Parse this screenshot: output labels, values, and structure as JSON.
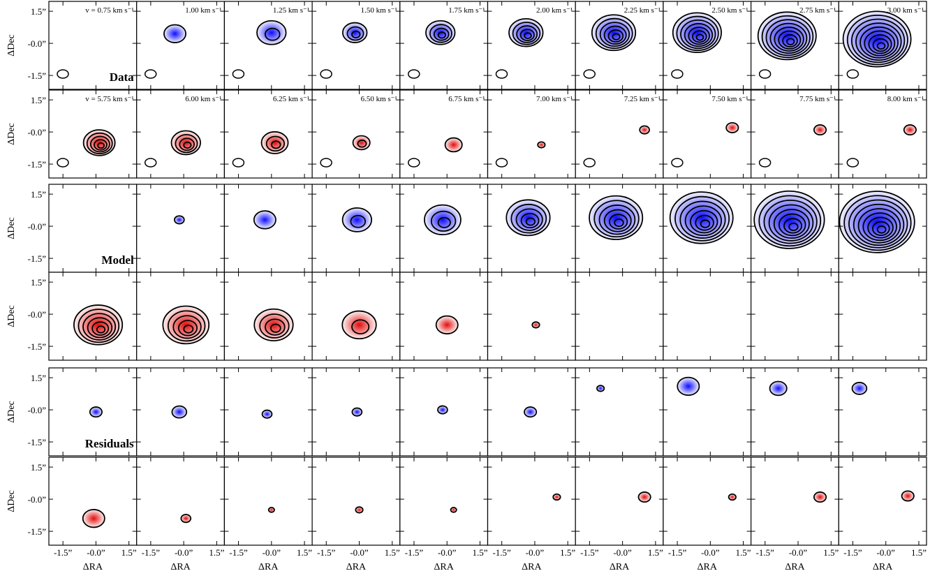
{
  "chart_data": {
    "type": "channel-map",
    "x_label": "ΔRA",
    "y_label": "ΔDec",
    "xlim": [
      -2.14,
      1.85
    ],
    "ylim": [
      -2.15,
      1.96
    ],
    "xticks": [
      {
        "value": -1.5,
        "label": "-1.5”"
      },
      {
        "value": 0,
        "label": "-0.0”"
      },
      {
        "value": 1.5,
        "label": "1.5”"
      }
    ],
    "yticks": [
      {
        "value": 1.5,
        "label": "1.5”"
      },
      {
        "value": 0,
        "label": "-0.0”"
      },
      {
        "value": -1.5,
        "label": "-1.5”"
      }
    ],
    "blue_color": "#0000ff",
    "red_color": "#e00000",
    "blue_velocities": [
      "v = 0.75 km s⁻¹",
      "1.00 km s⁻¹",
      "1.25 km s⁻¹",
      "1.50 km s⁻¹",
      "1.75 km s⁻¹",
      "2.00 km s⁻¹",
      "2.25 km s⁻¹",
      "2.50 km s⁻¹",
      "2.75 km s⁻¹",
      "3.00 km s⁻¹"
    ],
    "red_velocities": [
      "v = 5.75 km s⁻¹",
      "6.00 km s⁻¹",
      "6.25 km s⁻¹",
      "6.50 km s⁻¹",
      "6.75 km s⁻¹",
      "7.00 km s⁻¹",
      "7.25 km s⁻¹",
      "7.50 km s⁻¹",
      "7.75 km s⁻¹",
      "8.00 km s⁻¹"
    ],
    "groups": [
      {
        "name": "Data",
        "blue": [
          null,
          {
            "x": -0.4,
            "y": 0.45,
            "r": 0.45,
            "levels": 1
          },
          {
            "x": 0.0,
            "y": 0.5,
            "r": 0.6,
            "levels": 2
          },
          {
            "x": -0.2,
            "y": 0.5,
            "r": 0.5,
            "levels": 3
          },
          {
            "x": -0.3,
            "y": 0.5,
            "r": 0.6,
            "levels": 4
          },
          {
            "x": -0.4,
            "y": 0.5,
            "r": 0.7,
            "levels": 5
          },
          {
            "x": -0.4,
            "y": 0.5,
            "r": 0.9,
            "levels": 6
          },
          {
            "x": -0.6,
            "y": 0.5,
            "r": 1.0,
            "levels": 7
          },
          {
            "x": -0.5,
            "y": 0.35,
            "r": 1.2,
            "levels": 8
          },
          {
            "x": -0.4,
            "y": 0.2,
            "r": 1.4,
            "levels": 9
          }
        ],
        "red": [
          {
            "x": 0.15,
            "y": -0.5,
            "r": 0.65,
            "levels": 5
          },
          {
            "x": 0.1,
            "y": -0.5,
            "r": 0.6,
            "levels": 4
          },
          {
            "x": 0.15,
            "y": -0.5,
            "r": 0.55,
            "levels": 3
          },
          {
            "x": 0.1,
            "y": -0.5,
            "r": 0.35,
            "levels": 2
          },
          {
            "x": 0.3,
            "y": -0.6,
            "r": 0.35,
            "levels": 1
          },
          {
            "x": 0.3,
            "y": -0.6,
            "r": 0.15,
            "levels": 1
          },
          {
            "x": 1.0,
            "y": 0.1,
            "r": 0.2,
            "levels": 1
          },
          {
            "x": 1.0,
            "y": 0.2,
            "r": 0.25,
            "levels": 1
          },
          {
            "x": 1.0,
            "y": 0.1,
            "r": 0.25,
            "levels": 1
          },
          {
            "x": 1.1,
            "y": 0.1,
            "r": 0.25,
            "levels": 1
          }
        ]
      },
      {
        "name": "Model",
        "blue": [
          null,
          {
            "x": -0.2,
            "y": 0.3,
            "r": 0.2,
            "levels": 1
          },
          {
            "x": -0.3,
            "y": 0.3,
            "r": 0.45,
            "levels": 1
          },
          {
            "x": -0.1,
            "y": 0.3,
            "r": 0.6,
            "levels": 2
          },
          {
            "x": -0.2,
            "y": 0.3,
            "r": 0.75,
            "levels": 3
          },
          {
            "x": -0.3,
            "y": 0.4,
            "r": 0.9,
            "levels": 5
          },
          {
            "x": -0.3,
            "y": 0.4,
            "r": 1.1,
            "levels": 6
          },
          {
            "x": -0.4,
            "y": 0.4,
            "r": 1.3,
            "levels": 7
          },
          {
            "x": -0.4,
            "y": 0.3,
            "r": 1.45,
            "levels": 8
          },
          {
            "x": -0.4,
            "y": 0.2,
            "r": 1.55,
            "levels": 9
          }
        ],
        "red": [
          {
            "x": 0.1,
            "y": -0.5,
            "r": 1.0,
            "levels": 6
          },
          {
            "x": 0.1,
            "y": -0.5,
            "r": 0.95,
            "levels": 5
          },
          {
            "x": 0.1,
            "y": -0.5,
            "r": 0.8,
            "levels": 4
          },
          {
            "x": 0.0,
            "y": -0.5,
            "r": 0.7,
            "levels": 2
          },
          {
            "x": 0.0,
            "y": -0.5,
            "r": 0.45,
            "levels": 1
          },
          {
            "x": 0.05,
            "y": -0.5,
            "r": 0.15,
            "levels": 1
          },
          null,
          null,
          null,
          null
        ]
      },
      {
        "name": "Residuals",
        "blue": [
          {
            "x": 0.0,
            "y": -0.1,
            "r": 0.25,
            "levels": 1
          },
          {
            "x": -0.2,
            "y": -0.1,
            "r": 0.3,
            "levels": 1
          },
          {
            "x": -0.2,
            "y": -0.2,
            "r": 0.2,
            "levels": 1
          },
          {
            "x": -0.1,
            "y": -0.1,
            "r": 0.2,
            "levels": 1
          },
          {
            "x": -0.2,
            "y": 0.0,
            "r": 0.2,
            "levels": 1
          },
          {
            "x": -0.2,
            "y": -0.1,
            "r": 0.25,
            "levels": 1
          },
          {
            "x": -1.0,
            "y": 1.0,
            "r": 0.15,
            "levels": 1
          },
          {
            "x": -1.0,
            "y": 1.1,
            "r": 0.45,
            "levels": 1
          },
          {
            "x": -0.9,
            "y": 1.0,
            "r": 0.35,
            "levels": 1
          },
          {
            "x": -1.2,
            "y": 1.0,
            "r": 0.3,
            "levels": 1
          }
        ],
        "red": [
          {
            "x": -0.1,
            "y": -0.9,
            "r": 0.45,
            "levels": 1
          },
          {
            "x": 0.1,
            "y": -0.9,
            "r": 0.2,
            "levels": 1
          },
          {
            "x": 0.0,
            "y": -0.5,
            "r": 0.12,
            "levels": 1
          },
          {
            "x": 0.0,
            "y": -0.5,
            "r": 0.15,
            "levels": 1
          },
          {
            "x": 0.3,
            "y": -0.5,
            "r": 0.12,
            "levels": 1
          },
          {
            "x": 1.0,
            "y": 0.1,
            "r": 0.15,
            "levels": 1
          },
          {
            "x": 1.0,
            "y": 0.1,
            "r": 0.25,
            "levels": 1
          },
          {
            "x": 1.0,
            "y": 0.1,
            "r": 0.15,
            "levels": 1
          },
          {
            "x": 1.0,
            "y": 0.1,
            "r": 0.25,
            "levels": 1
          },
          {
            "x": 1.0,
            "y": 0.15,
            "r": 0.25,
            "levels": 1
          }
        ]
      }
    ]
  }
}
